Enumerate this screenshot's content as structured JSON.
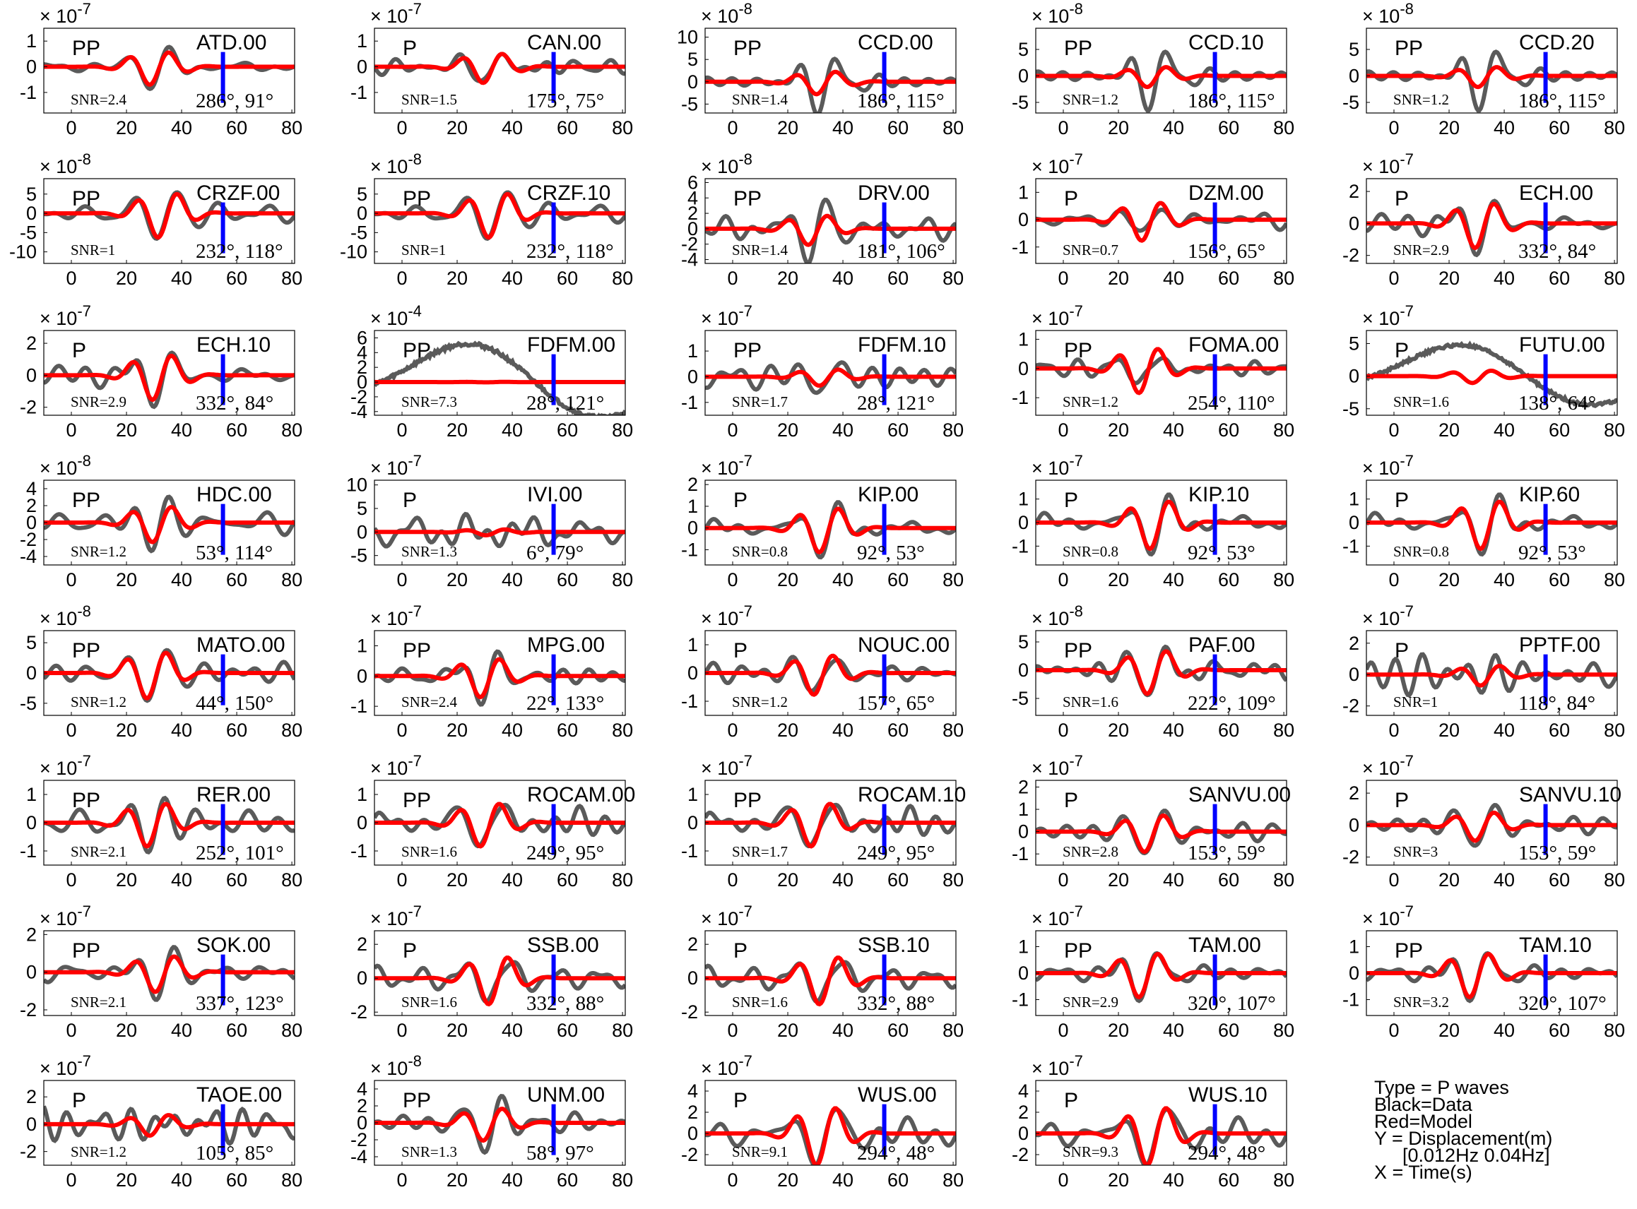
{
  "colors": {
    "data": "#5a5a5a",
    "model": "#ff0000",
    "marker": "#0000ff",
    "axis": "#000000"
  },
  "legend": {
    "lines": [
      "Type = P waves",
      "Black=Data",
      "Red=Model",
      "Y = Displacement(m)",
      "[0.012Hz 0.04Hz]",
      "X = Time(s)"
    ]
  },
  "chart_data": {
    "type": "line",
    "grid": false,
    "xlim": [
      -10,
      81
    ],
    "x_ticks": [
      0,
      20,
      40,
      60,
      80
    ],
    "marker_time": 55,
    "panels": [
      {
        "station": "ATD.00",
        "phase": "PP",
        "snr": "SNR=2.4",
        "angles": "286°, 91°",
        "exponent": "-7",
        "yticks": [
          -1,
          0,
          1
        ],
        "ylim": [
          -1.8,
          1.5
        ],
        "amp_data": 1.1,
        "amp_model": 1.0,
        "seed": 1
      },
      {
        "station": "CAN.00",
        "phase": "P",
        "snr": "SNR=1.5",
        "angles": "175°, 75°",
        "exponent": "-7",
        "yticks": [
          -1,
          0,
          1
        ],
        "ylim": [
          -1.8,
          1.5
        ],
        "amp_data": 1.2,
        "amp_model": 0.9,
        "seed": 2
      },
      {
        "station": "CCD.00",
        "phase": "PP",
        "snr": "SNR=1.4",
        "angles": "186°, 115°",
        "exponent": "-8",
        "yticks": [
          -5,
          0,
          5,
          10
        ],
        "ylim": [
          -7,
          12
        ],
        "amp_data": 9,
        "amp_model": 4,
        "seed": 3
      },
      {
        "station": "CCD.10",
        "phase": "PP",
        "snr": "SNR=1.2",
        "angles": "186°, 115°",
        "exponent": "-8",
        "yticks": [
          -5,
          0,
          5
        ],
        "ylim": [
          -7,
          9
        ],
        "amp_data": 8,
        "amp_model": 3,
        "seed": 3
      },
      {
        "station": "CCD.20",
        "phase": "PP",
        "snr": "SNR=1.2",
        "angles": "186°, 115°",
        "exponent": "-8",
        "yticks": [
          -5,
          0,
          5
        ],
        "ylim": [
          -7,
          9
        ],
        "amp_data": 8,
        "amp_model": 3,
        "seed": 3
      },
      {
        "station": "CRZF.00",
        "phase": "PP",
        "snr": "SNR=1",
        "angles": "232°, 118°",
        "exponent": "-8",
        "yticks": [
          -10,
          -5,
          0,
          5
        ],
        "ylim": [
          -13,
          9
        ],
        "amp_data": 8,
        "amp_model": 9,
        "seed": 4
      },
      {
        "station": "CRZF.10",
        "phase": "PP",
        "snr": "SNR=1",
        "angles": "232°, 118°",
        "exponent": "-8",
        "yticks": [
          -10,
          -5,
          0,
          5
        ],
        "ylim": [
          -13,
          9
        ],
        "amp_data": 8,
        "amp_model": 9,
        "seed": 4
      },
      {
        "station": "DRV.00",
        "phase": "PP",
        "snr": "SNR=1.4",
        "angles": "181°, 106°",
        "exponent": "-8",
        "yticks": [
          -4,
          -2,
          0,
          2,
          4,
          6
        ],
        "ylim": [
          -4.5,
          6.5
        ],
        "amp_data": 5,
        "amp_model": 3,
        "seed": 5
      },
      {
        "station": "DZM.00",
        "phase": "P",
        "snr": "SNR=0.7",
        "angles": "156°, 65°",
        "exponent": "-7",
        "yticks": [
          -1,
          0,
          1
        ],
        "ylim": [
          -1.6,
          1.5
        ],
        "amp_data": 1.1,
        "amp_model": 1.1,
        "seed": 6
      },
      {
        "station": "ECH.00",
        "phase": "P",
        "snr": "SNR=2.9",
        "angles": "332°, 84°",
        "exponent": "-7",
        "yticks": [
          -2,
          0,
          2
        ],
        "ylim": [
          -2.5,
          2.8
        ],
        "amp_data": 2.2,
        "amp_model": 2.2,
        "seed": 7
      },
      {
        "station": "ECH.10",
        "phase": "P",
        "snr": "SNR=2.9",
        "angles": "332°, 84°",
        "exponent": "-7",
        "yticks": [
          -2,
          0,
          2
        ],
        "ylim": [
          -2.5,
          2.8
        ],
        "amp_data": 2.2,
        "amp_model": 2.2,
        "seed": 7
      },
      {
        "station": "FDFM.00",
        "phase": "PP",
        "snr": "SNR=7.3",
        "angles": "28°, 121°",
        "exponent": "-4",
        "yticks": [
          -4,
          -2,
          0,
          2,
          4,
          6
        ],
        "ylim": [
          -4.5,
          7
        ],
        "amp_data": 6,
        "amp_model": 0.05,
        "seed": 8,
        "shape": "swell"
      },
      {
        "station": "FDFM.10",
        "phase": "PP",
        "snr": "SNR=1.7",
        "angles": "28°, 121°",
        "exponent": "-7",
        "yticks": [
          -1,
          0,
          1
        ],
        "ylim": [
          -1.5,
          1.8
        ],
        "amp_data": 1.5,
        "amp_model": 0.5,
        "seed": 9
      },
      {
        "station": "FOMA.00",
        "phase": "PP",
        "snr": "SNR=1.2",
        "angles": "254°, 110°",
        "exponent": "-7",
        "yticks": [
          -1,
          0,
          1
        ],
        "ylim": [
          -1.6,
          1.3
        ],
        "amp_data": 1.0,
        "amp_model": 1.2,
        "seed": 10
      },
      {
        "station": "FUTU.00",
        "phase": "P",
        "snr": "SNR=1.6",
        "angles": "138°, 64°",
        "exponent": "-7",
        "yticks": [
          -5,
          0,
          5
        ],
        "ylim": [
          -6,
          7
        ],
        "amp_data": 5.5,
        "amp_model": 1.5,
        "seed": 11,
        "shape": "swell"
      },
      {
        "station": "HDC.00",
        "phase": "PP",
        "snr": "SNR=1.2",
        "angles": "53°, 114°",
        "exponent": "-8",
        "yticks": [
          -4,
          -2,
          0,
          2,
          4
        ],
        "ylim": [
          -5,
          5
        ],
        "amp_data": 4,
        "amp_model": 3.3,
        "seed": 12
      },
      {
        "station": "IVI.00",
        "phase": "P",
        "snr": "SNR=1.3",
        "angles": "6°, 79°",
        "exponent": "-7",
        "yticks": [
          -5,
          0,
          5,
          10
        ],
        "ylim": [
          -7,
          11
        ],
        "amp_data": 7,
        "amp_model": 1,
        "seed": 13,
        "shape": "noise"
      },
      {
        "station": "KIP.00",
        "phase": "P",
        "snr": "SNR=0.8",
        "angles": "92°, 53°",
        "exponent": "-7",
        "yticks": [
          -1,
          0,
          1,
          2
        ],
        "ylim": [
          -1.7,
          2.2
        ],
        "amp_data": 1.5,
        "amp_model": 1.6,
        "seed": 14
      },
      {
        "station": "KIP.10",
        "phase": "P",
        "snr": "SNR=0.8",
        "angles": "92°, 53°",
        "exponent": "-7",
        "yticks": [
          -1,
          0,
          1
        ],
        "ylim": [
          -1.8,
          1.8
        ],
        "amp_data": 1.5,
        "amp_model": 1.6,
        "seed": 14
      },
      {
        "station": "KIP.60",
        "phase": "P",
        "snr": "SNR=0.8",
        "angles": "92°, 53°",
        "exponent": "-7",
        "yticks": [
          -1,
          0,
          1
        ],
        "ylim": [
          -1.8,
          1.8
        ],
        "amp_data": 1.5,
        "amp_model": 1.6,
        "seed": 14
      },
      {
        "station": "MATO.00",
        "phase": "PP",
        "snr": "SNR=1.2",
        "angles": "44°, 150°",
        "exponent": "-8",
        "yticks": [
          -5,
          0,
          5
        ],
        "ylim": [
          -7,
          7
        ],
        "amp_data": 6,
        "amp_model": 6,
        "seed": 15
      },
      {
        "station": "MPG.00",
        "phase": "PP",
        "snr": "SNR=2.4",
        "angles": "22°, 133°",
        "exponent": "-7",
        "yticks": [
          -1,
          0,
          1
        ],
        "ylim": [
          -1.3,
          1.5
        ],
        "amp_data": 1.2,
        "amp_model": 1.0,
        "seed": 16
      },
      {
        "station": "NOUC.00",
        "phase": "P",
        "snr": "SNR=1.2",
        "angles": "157°, 65°",
        "exponent": "-7",
        "yticks": [
          -1,
          0,
          1
        ],
        "ylim": [
          -1.5,
          1.5
        ],
        "amp_data": 1.1,
        "amp_model": 1.1,
        "seed": 17
      },
      {
        "station": "PAF.00",
        "phase": "PP",
        "snr": "SNR=1.6",
        "angles": "222°, 109°",
        "exponent": "-8",
        "yticks": [
          -5,
          0,
          5
        ],
        "ylim": [
          -8,
          7
        ],
        "amp_data": 6,
        "amp_model": 6,
        "seed": 18
      },
      {
        "station": "PPTF.00",
        "phase": "P",
        "snr": "SNR=1",
        "angles": "118°, 84°",
        "exponent": "-7",
        "yticks": [
          -2,
          0,
          2
        ],
        "ylim": [
          -2.6,
          2.8
        ],
        "amp_data": 2,
        "amp_model": 1,
        "seed": 19,
        "shape": "noise"
      },
      {
        "station": "RER.00",
        "phase": "PP",
        "snr": "SNR=2.1",
        "angles": "252°, 101°",
        "exponent": "-7",
        "yticks": [
          -1,
          0,
          1
        ],
        "ylim": [
          -1.5,
          1.5
        ],
        "amp_data": 1.2,
        "amp_model": 1.2,
        "seed": 20
      },
      {
        "station": "ROCAM.00",
        "phase": "PP",
        "snr": "SNR=1.6",
        "angles": "249°, 95°",
        "exponent": "-7",
        "yticks": [
          -1,
          0,
          1
        ],
        "ylim": [
          -1.5,
          1.5
        ],
        "amp_data": 1.2,
        "amp_model": 1.2,
        "seed": 21
      },
      {
        "station": "ROCAM.10",
        "phase": "PP",
        "snr": "SNR=1.7",
        "angles": "249°, 95°",
        "exponent": "-7",
        "yticks": [
          -1,
          0,
          1
        ],
        "ylim": [
          -1.5,
          1.5
        ],
        "amp_data": 1.2,
        "amp_model": 1.2,
        "seed": 21
      },
      {
        "station": "SANVU.00",
        "phase": "P",
        "snr": "SNR=2.8",
        "angles": "153°, 59°",
        "exponent": "-7",
        "yticks": [
          -1,
          0,
          1,
          2
        ],
        "ylim": [
          -1.5,
          2.3
        ],
        "amp_data": 1.5,
        "amp_model": 1.3,
        "seed": 22
      },
      {
        "station": "SANVU.10",
        "phase": "P",
        "snr": "SNR=3",
        "angles": "153°, 59°",
        "exponent": "-7",
        "yticks": [
          -2,
          0,
          2
        ],
        "ylim": [
          -2.5,
          2.8
        ],
        "amp_data": 2,
        "amp_model": 1.4,
        "seed": 22
      },
      {
        "station": "SOK.00",
        "phase": "PP",
        "snr": "SNR=2.1",
        "angles": "337°, 123°",
        "exponent": "-7",
        "yticks": [
          -2,
          0,
          2
        ],
        "ylim": [
          -2.3,
          2.2
        ],
        "amp_data": 1.8,
        "amp_model": 1.5,
        "seed": 23
      },
      {
        "station": "SSB.00",
        "phase": "P",
        "snr": "SNR=1.6",
        "angles": "332°, 88°",
        "exponent": "-7",
        "yticks": [
          -2,
          0,
          2
        ],
        "ylim": [
          -2.2,
          2.8
        ],
        "amp_data": 2.2,
        "amp_model": 2.2,
        "seed": 24
      },
      {
        "station": "SSB.10",
        "phase": "P",
        "snr": "SNR=1.6",
        "angles": "332°, 88°",
        "exponent": "-7",
        "yticks": [
          -2,
          0,
          2
        ],
        "ylim": [
          -2.2,
          2.8
        ],
        "amp_data": 2.2,
        "amp_model": 2.2,
        "seed": 24
      },
      {
        "station": "TAM.00",
        "phase": "PP",
        "snr": "SNR=2.9",
        "angles": "320°, 107°",
        "exponent": "-7",
        "yticks": [
          -1,
          0,
          1
        ],
        "ylim": [
          -1.6,
          1.6
        ],
        "amp_data": 1.3,
        "amp_model": 1.3,
        "seed": 25
      },
      {
        "station": "TAM.10",
        "phase": "PP",
        "snr": "SNR=3.2",
        "angles": "320°, 107°",
        "exponent": "-7",
        "yticks": [
          -1,
          0,
          1
        ],
        "ylim": [
          -1.6,
          1.6
        ],
        "amp_data": 1.3,
        "amp_model": 1.3,
        "seed": 25
      },
      {
        "station": "TAOE.00",
        "phase": "P",
        "snr": "SNR=1.2",
        "angles": "105°, 85°",
        "exponent": "-7",
        "yticks": [
          -2,
          0,
          2
        ],
        "ylim": [
          -3,
          3.2
        ],
        "amp_data": 2.5,
        "amp_model": 1.2,
        "seed": 26,
        "shape": "noise"
      },
      {
        "station": "UNM.00",
        "phase": "PP",
        "snr": "SNR=1.3",
        "angles": "58°, 97°",
        "exponent": "-8",
        "yticks": [
          -4,
          -2,
          0,
          2,
          4
        ],
        "ylim": [
          -5,
          5
        ],
        "amp_data": 4,
        "amp_model": 3,
        "seed": 27
      },
      {
        "station": "WUS.00",
        "phase": "P",
        "snr": "SNR=9.1",
        "angles": "294°, 48°",
        "exponent": "-7",
        "yticks": [
          -2,
          0,
          2,
          4
        ],
        "ylim": [
          -3,
          5
        ],
        "amp_data": 4.2,
        "amp_model": 4.3,
        "seed": 28
      },
      {
        "station": "WUS.10",
        "phase": "P",
        "snr": "SNR=9.3",
        "angles": "294°, 48°",
        "exponent": "-7",
        "yticks": [
          -2,
          0,
          2,
          4
        ],
        "ylim": [
          -3,
          5
        ],
        "amp_data": 4.2,
        "amp_model": 4.3,
        "seed": 28
      }
    ]
  }
}
